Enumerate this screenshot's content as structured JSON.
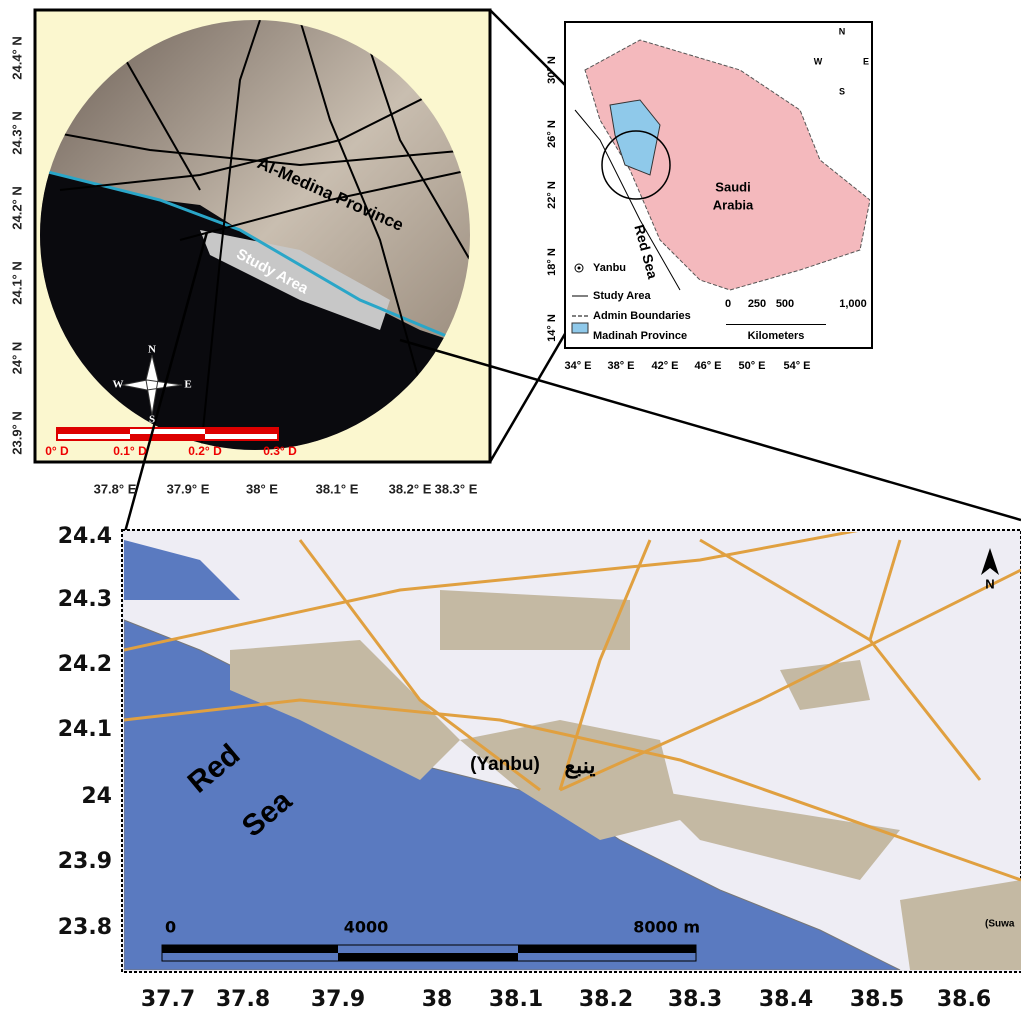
{
  "satellite_map": {
    "y_labels": [
      "24.4° N",
      "24.3° N",
      "24.2° N",
      "24.1° N",
      "24° N",
      "23.9° N"
    ],
    "x_labels": [
      "37.8° E",
      "37.9° E",
      "38° E",
      "38.1° E",
      "38.2° E",
      "38.3° E"
    ],
    "province_label": "Al-Medina Province",
    "study_area_label": "Study Area",
    "compass": {
      "n": "N",
      "s": "S",
      "e": "E",
      "w": "W"
    },
    "scale_labels": [
      "0° D",
      "0.1° D",
      "0.2° D",
      "0.3° D"
    ]
  },
  "location_map": {
    "y_labels": [
      "30° N",
      "26° N",
      "22° N",
      "18° N",
      "14° N"
    ],
    "x_labels": [
      "34° E",
      "38° E",
      "42° E",
      "46° E",
      "50° E",
      "54° E"
    ],
    "country_label": [
      "Saudi",
      "Arabia"
    ],
    "sea_label": "Red Sea",
    "compass": {
      "n": "N",
      "s": "S",
      "e": "E",
      "w": "W"
    },
    "legend": [
      "Yanbu",
      "Study Area",
      "Admin Boundaries",
      "Madinah Province"
    ],
    "scale_labels": [
      "0",
      "250",
      "500",
      "1,000"
    ],
    "scale_unit": "Kilometers"
  },
  "city_map": {
    "y_labels": [
      "24.4",
      "24.3",
      "24.2",
      "24.1",
      "24",
      "23.9",
      "23.8"
    ],
    "x_labels": [
      "37.7",
      "37.8",
      "37.9",
      "38",
      "38.1",
      "38.2",
      "38.3",
      "38.4",
      "38.5",
      "38.6"
    ],
    "sea_label": [
      "Red",
      "Sea"
    ],
    "city_label": "(Yanbu)",
    "city_label_arabic": "ينبع",
    "town_label": "(Suwa",
    "north": "N",
    "scale_labels": [
      "0",
      "4000",
      "8000 m"
    ]
  }
}
